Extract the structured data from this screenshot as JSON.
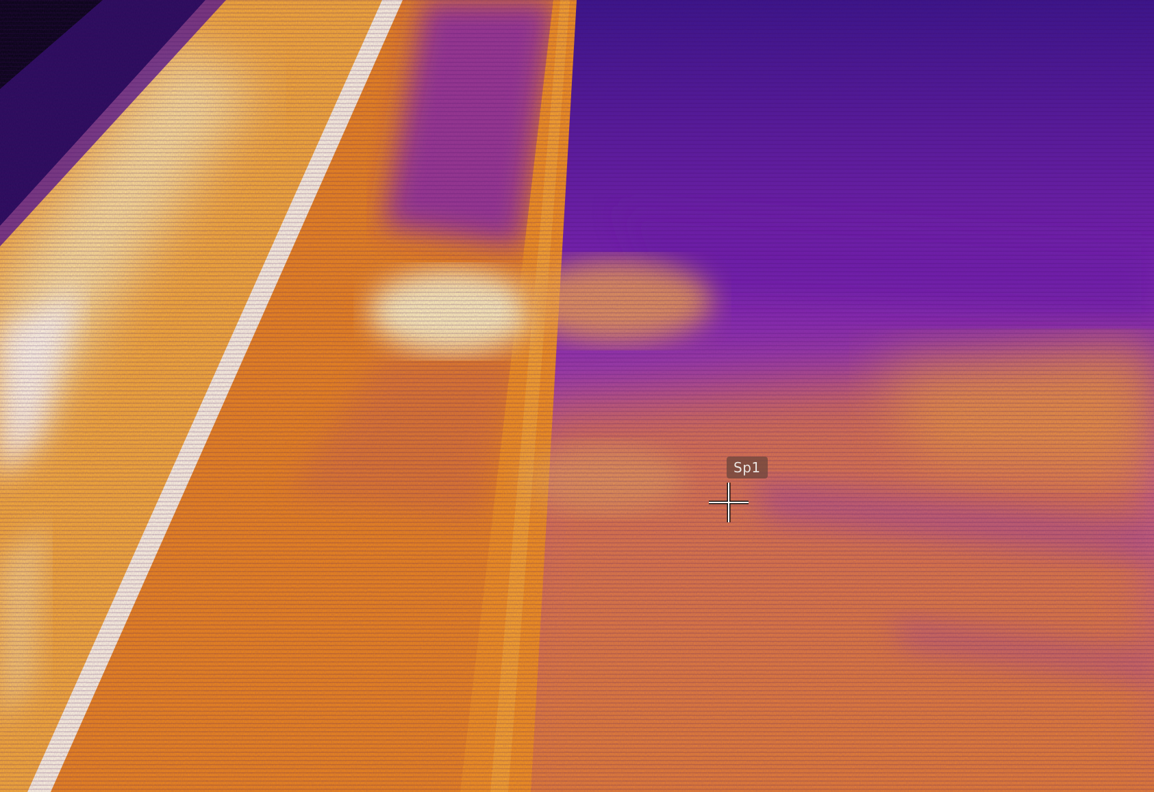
{
  "palette": {
    "cold": "#1a0a3c",
    "cool": "#6a1aa8",
    "warm": "#e8781e",
    "hot": "#f7c043",
    "hottest": "#fbffe8"
  },
  "measurement": {
    "spot_label": "Sp1"
  }
}
